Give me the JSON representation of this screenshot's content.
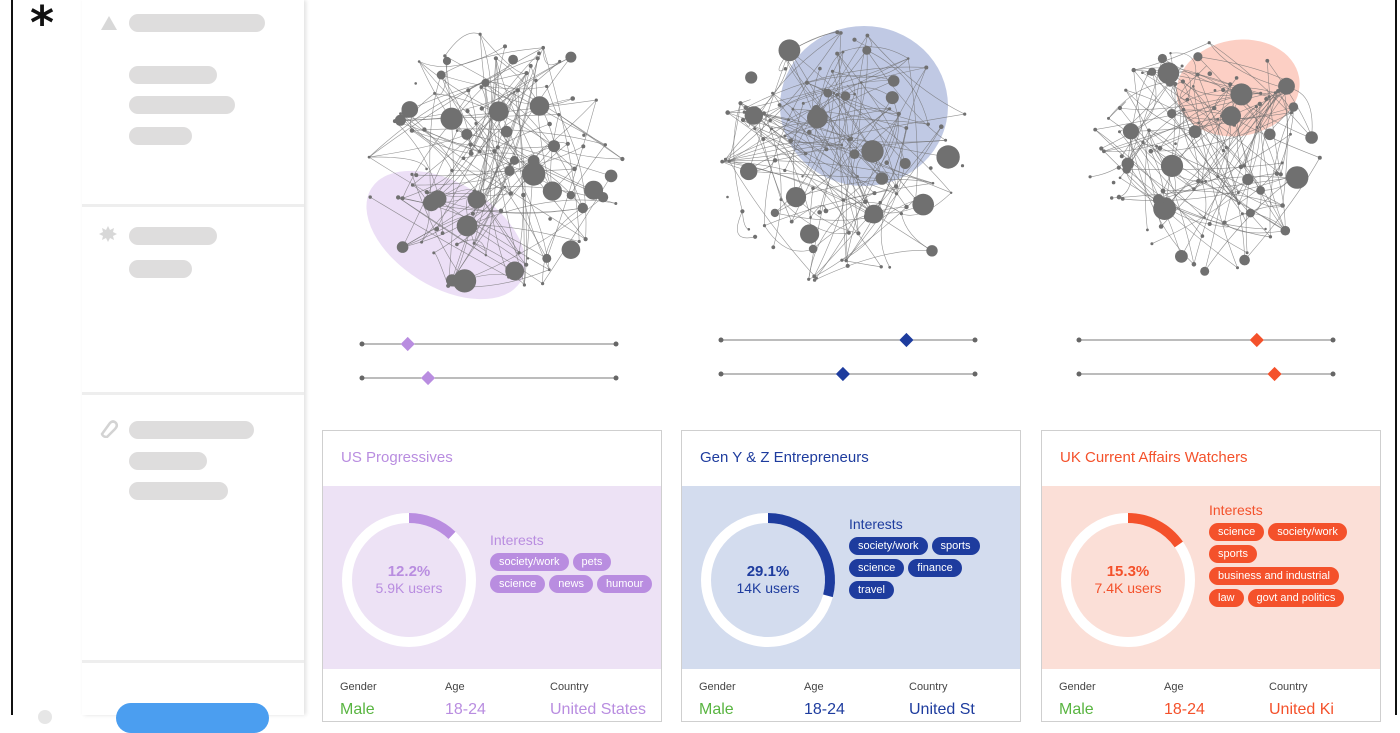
{
  "app": {
    "logo": "*"
  },
  "colors": {
    "purple": "#b98de0",
    "purple_bg": "#ede2f5",
    "blue": "#1e3c9e",
    "blue_bg": "#d3dcee",
    "orange": "#f4512b",
    "orange_bg": "#fbdfd7",
    "male_green": "#59b541"
  },
  "sidebar": {
    "sections": [
      {
        "icon": "triangle-icon"
      },
      {
        "icon": "badge-icon"
      },
      {
        "icon": "tag-icon"
      }
    ]
  },
  "panels": [
    {
      "title": "US Progressives",
      "percent": "12.2%",
      "users": "5.9K users",
      "share": 0.122,
      "interests_label": "Interests",
      "interests": [
        "society/work",
        "pets",
        "science",
        "news",
        "humour"
      ],
      "stats": {
        "gender_label": "Gender",
        "gender": "Male",
        "age_label": "Age",
        "age": "18-24",
        "country_label": "Country",
        "country": "United States"
      },
      "sliders": [
        0.18,
        0.26
      ]
    },
    {
      "title": "Gen Y & Z Entrepreneurs",
      "percent": "29.1%",
      "users": "14K users",
      "share": 0.291,
      "interests_label": "Interests",
      "interests": [
        "society/work",
        "sports",
        "science",
        "finance",
        "travel"
      ],
      "stats": {
        "gender_label": "Gender",
        "gender": "Male",
        "age_label": "Age",
        "age": "18-24",
        "country_label": "Country",
        "country": "United St"
      },
      "sliders": [
        0.73,
        0.48
      ]
    },
    {
      "title": "UK Current Affairs Watchers",
      "percent": "15.3%",
      "users": "7.4K users",
      "share": 0.153,
      "interests_label": "Interests",
      "interests": [
        "science",
        "society/work",
        "sports",
        "business and industrial",
        "law",
        "govt and politics"
      ],
      "stats": {
        "gender_label": "Gender",
        "gender": "Male",
        "age_label": "Age",
        "age": "18-24",
        "country_label": "Country",
        "country": "United Ki"
      },
      "sliders": [
        0.7,
        0.77
      ]
    }
  ]
}
